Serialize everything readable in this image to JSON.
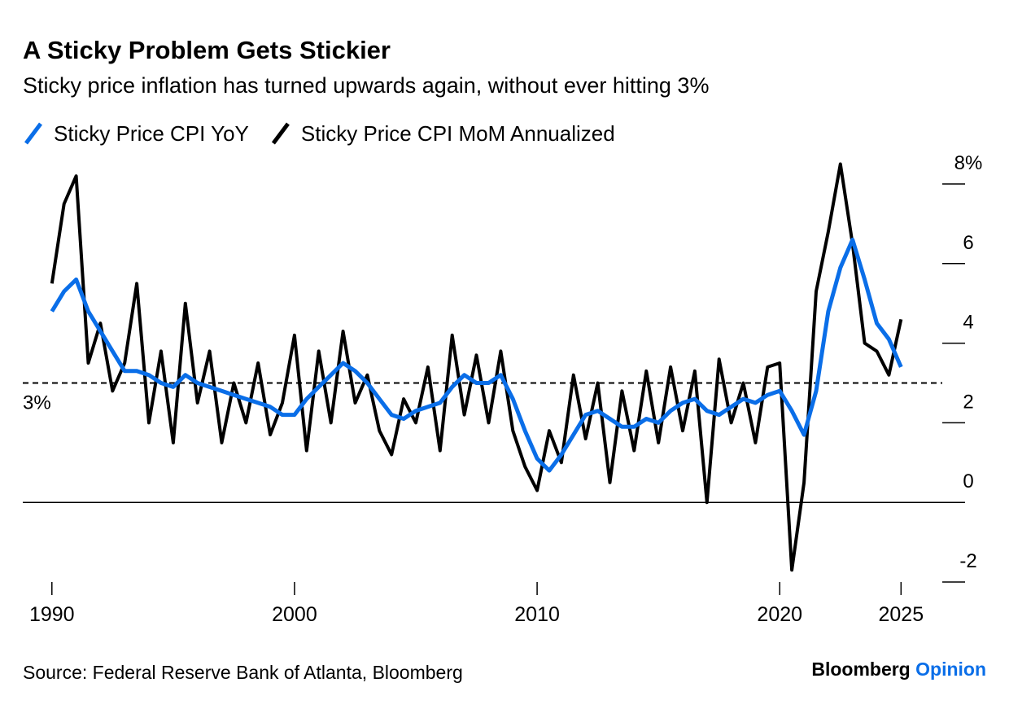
{
  "chart_data": {
    "type": "line",
    "title": "A Sticky Problem Gets Stickier",
    "subtitle": "Sticky price inflation has turned upwards again, without ever hitting 3%",
    "source": "Source: Federal Reserve Bank of Atlanta, Bloomberg",
    "brand": [
      "Bloomberg",
      "Opinion"
    ],
    "x": [
      1990,
      1990.5,
      1991,
      1991.5,
      1992,
      1992.5,
      1993,
      1993.5,
      1994,
      1994.5,
      1995,
      1995.5,
      1996,
      1996.5,
      1997,
      1997.5,
      1998,
      1998.5,
      1999,
      1999.5,
      2000,
      2000.5,
      2001,
      2001.5,
      2002,
      2002.5,
      2003,
      2003.5,
      2004,
      2004.5,
      2005,
      2005.5,
      2006,
      2006.5,
      2007,
      2007.5,
      2008,
      2008.5,
      2009,
      2009.5,
      2010,
      2010.5,
      2011,
      2011.5,
      2012,
      2012.5,
      2013,
      2013.5,
      2014,
      2014.5,
      2015,
      2015.5,
      2016,
      2016.5,
      2017,
      2017.5,
      2018,
      2018.5,
      2019,
      2019.5,
      2020,
      2020.5,
      2021,
      2021.5,
      2022,
      2022.5,
      2023,
      2023.5,
      2024,
      2024.5,
      2025
    ],
    "series": [
      {
        "name": "Sticky Price CPI YoY",
        "color": "#0a6ee8",
        "values": [
          4.8,
          5.3,
          5.6,
          4.8,
          4.3,
          3.8,
          3.3,
          3.3,
          3.2,
          3.0,
          2.9,
          3.2,
          3.0,
          2.9,
          2.8,
          2.7,
          2.6,
          2.5,
          2.4,
          2.2,
          2.2,
          2.6,
          2.9,
          3.2,
          3.5,
          3.3,
          3.0,
          2.6,
          2.2,
          2.1,
          2.3,
          2.4,
          2.5,
          2.9,
          3.2,
          3.0,
          3.0,
          3.2,
          2.6,
          1.8,
          1.1,
          0.8,
          1.2,
          1.7,
          2.2,
          2.3,
          2.1,
          1.9,
          1.9,
          2.1,
          2.0,
          2.3,
          2.5,
          2.6,
          2.3,
          2.2,
          2.4,
          2.6,
          2.5,
          2.7,
          2.8,
          2.3,
          1.7,
          2.8,
          4.8,
          5.9,
          6.6,
          5.6,
          4.5,
          4.1,
          3.4
        ]
      },
      {
        "name": "Sticky Price CPI MoM Annualized",
        "color": "#000000",
        "values": [
          5.5,
          7.5,
          8.2,
          3.5,
          4.5,
          2.8,
          3.5,
          5.5,
          2.0,
          3.8,
          1.5,
          5.0,
          2.5,
          3.8,
          1.5,
          3.0,
          2.0,
          3.5,
          1.7,
          2.5,
          4.2,
          1.3,
          3.8,
          2.0,
          4.3,
          2.5,
          3.2,
          1.8,
          1.2,
          2.6,
          2.0,
          3.4,
          1.3,
          4.2,
          2.2,
          3.7,
          2.0,
          3.8,
          1.8,
          0.9,
          0.3,
          1.8,
          1.0,
          3.2,
          1.6,
          3.0,
          0.5,
          2.8,
          1.3,
          3.3,
          1.5,
          3.4,
          1.8,
          3.3,
          0.0,
          3.6,
          2.0,
          3.0,
          1.5,
          3.4,
          3.5,
          -1.7,
          0.5,
          5.3,
          6.8,
          8.5,
          6.5,
          4.0,
          3.8,
          3.2,
          4.6
        ]
      }
    ],
    "xlim": [
      1988.8,
      2026.7
    ],
    "xticks": [
      1990,
      2000,
      2010,
      2020,
      2025
    ],
    "ylim": [
      -2,
      8
    ],
    "yticks": [
      -2,
      0,
      2,
      4,
      6,
      {
        "value": 8,
        "label": "8%"
      }
    ],
    "reference_line": {
      "value": 3,
      "label": "3%"
    }
  }
}
